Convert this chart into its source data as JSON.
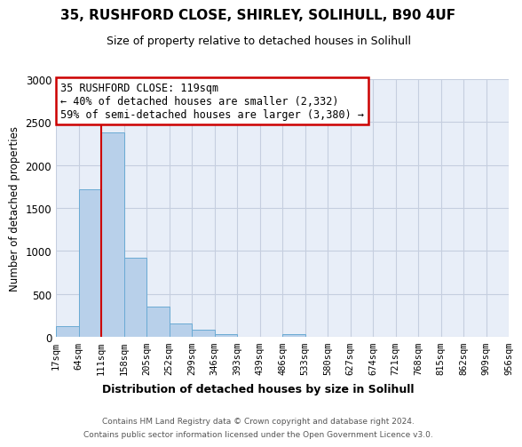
{
  "title": "35, RUSHFORD CLOSE, SHIRLEY, SOLIHULL, B90 4UF",
  "subtitle": "Size of property relative to detached houses in Solihull",
  "xlabel": "Distribution of detached houses by size in Solihull",
  "ylabel": "Number of detached properties",
  "bar_values": [
    120,
    1720,
    2380,
    920,
    350,
    155,
    80,
    35,
    0,
    0,
    30,
    0,
    0,
    0,
    0,
    0,
    0,
    0,
    0,
    0
  ],
  "bin_labels": [
    "17sqm",
    "64sqm",
    "111sqm",
    "158sqm",
    "205sqm",
    "252sqm",
    "299sqm",
    "346sqm",
    "393sqm",
    "439sqm",
    "486sqm",
    "533sqm",
    "580sqm",
    "627sqm",
    "674sqm",
    "721sqm",
    "768sqm",
    "815sqm",
    "862sqm",
    "909sqm",
    "956sqm"
  ],
  "bar_color": "#b8d0ea",
  "bar_edge_color": "#6aaad4",
  "vline_x_index": 2,
  "vline_color": "#cc0000",
  "ylim": [
    0,
    3000
  ],
  "yticks": [
    0,
    500,
    1000,
    1500,
    2000,
    2500,
    3000
  ],
  "annotation_title": "35 RUSHFORD CLOSE: 119sqm",
  "annotation_line1": "← 40% of detached houses are smaller (2,332)",
  "annotation_line2": "59% of semi-detached houses are larger (3,380) →",
  "annotation_box_color": "#cc0000",
  "footer_line1": "Contains HM Land Registry data © Crown copyright and database right 2024.",
  "footer_line2": "Contains public sector information licensed under the Open Government Licence v3.0.",
  "bg_color": "#ffffff",
  "plot_bg_color": "#e8eef8",
  "grid_color": "#c5cedf"
}
